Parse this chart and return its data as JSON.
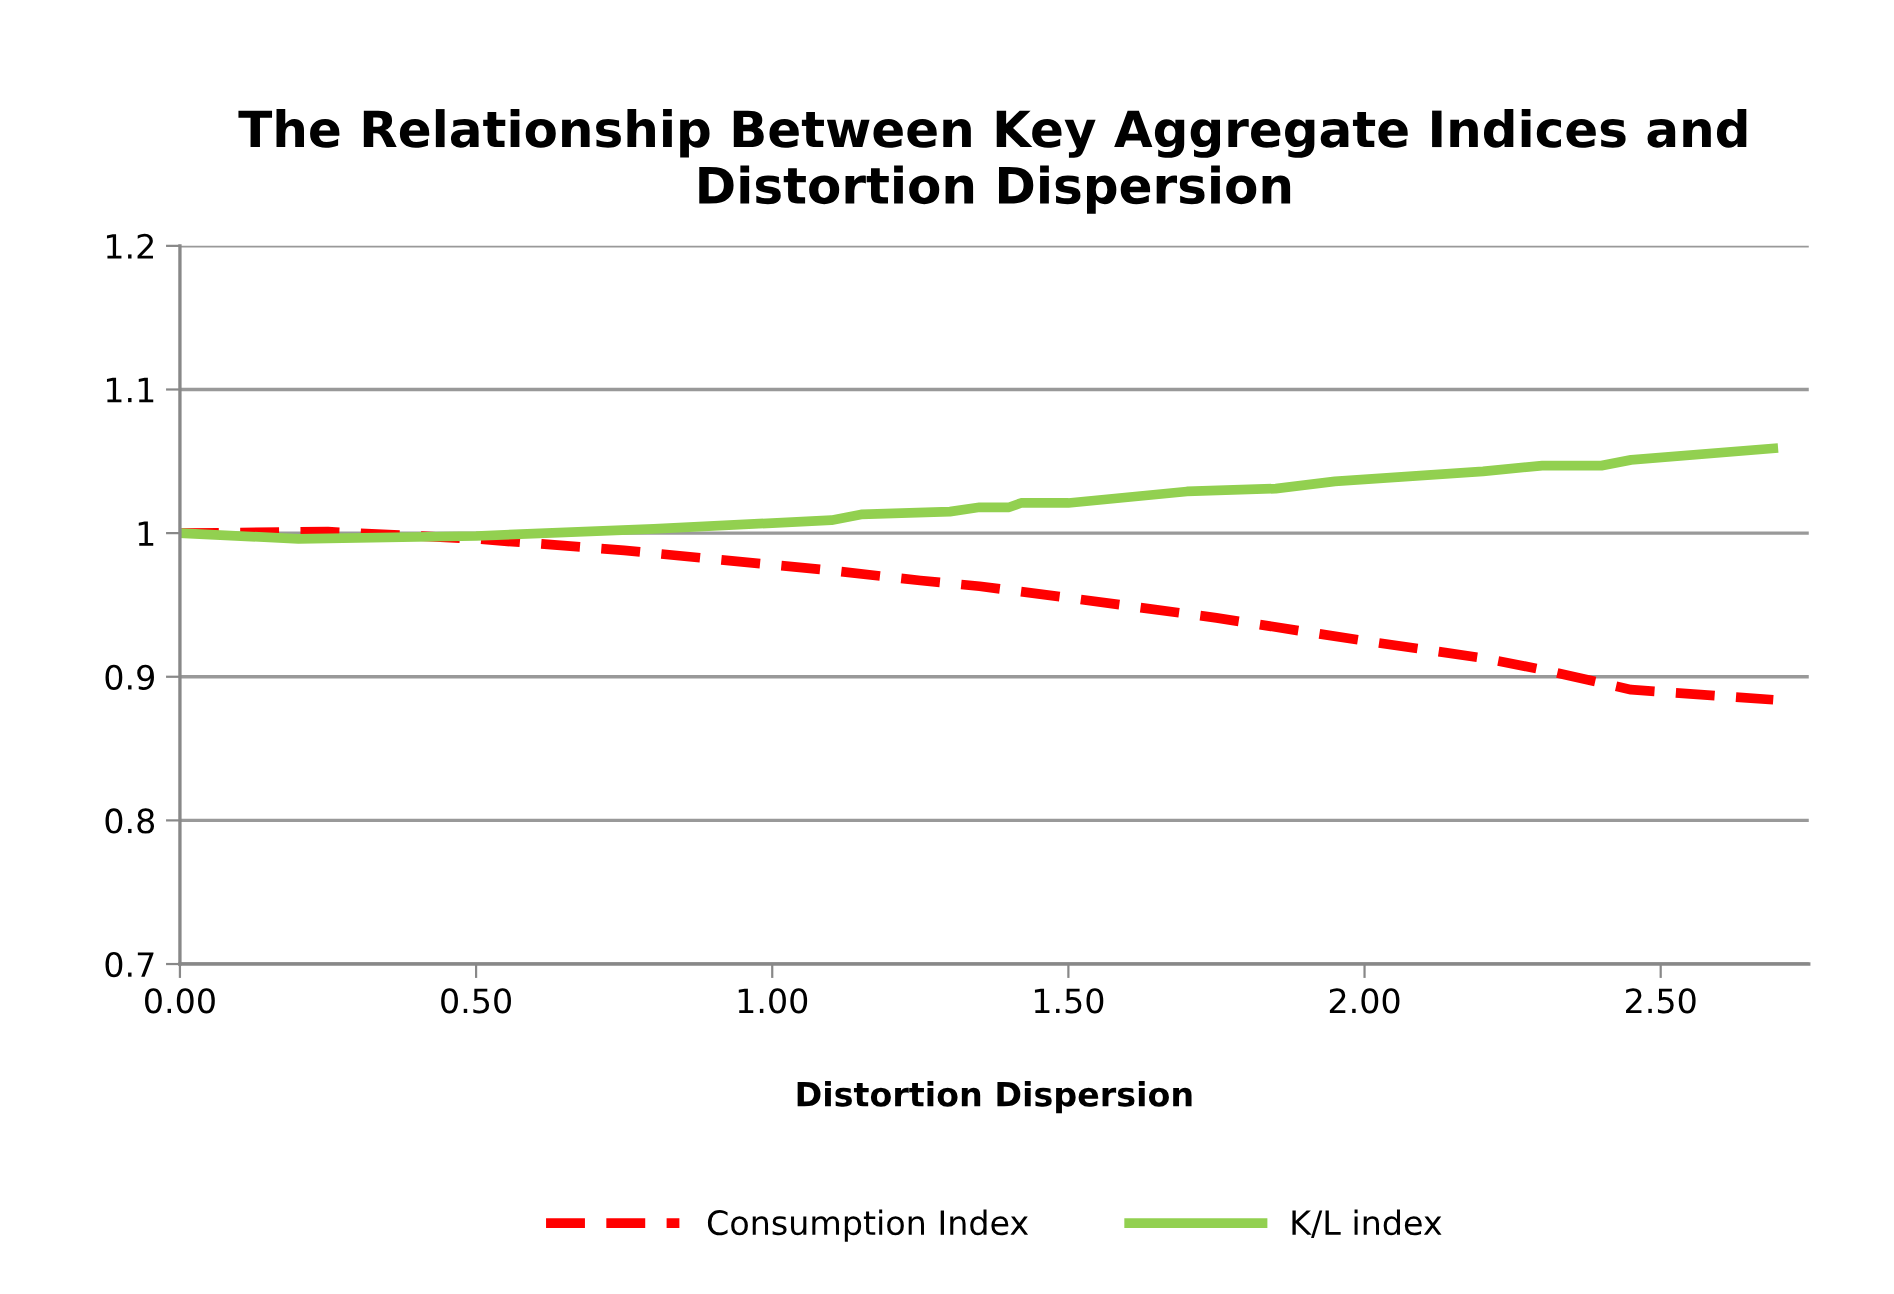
{
  "chart_data": {
    "type": "line",
    "title": "The Relationship Between Key Aggregate Indices and Distortion Dispersion",
    "xlabel": "Distortion Dispersion",
    "xlim": [
      0,
      2.75
    ],
    "xticks": [
      {
        "value": 0,
        "label": "0.00"
      },
      {
        "value": 0.5,
        "label": "0.50"
      },
      {
        "value": 1.0,
        "label": "1.00"
      },
      {
        "value": 1.5,
        "label": "1.50"
      },
      {
        "value": 2.0,
        "label": "2.00"
      },
      {
        "value": 2.5,
        "label": "2.50"
      }
    ],
    "ylim": [
      0.7,
      1.2
    ],
    "yticks": [
      0.7,
      0.8,
      0.9,
      1,
      1.1,
      1.2
    ],
    "grid": "y",
    "legend": "bottom",
    "marker": "none",
    "series": [
      {
        "name": "Consumption Index",
        "color": "#ff0000",
        "line_style": "dashed",
        "x": [
          0,
          0.25,
          0.5,
          0.75,
          1.0,
          1.1,
          1.25,
          1.35,
          1.5,
          1.75,
          2.0,
          2.2,
          2.3,
          2.45,
          2.69
        ],
        "values": [
          1.0,
          1.001,
          0.996,
          0.988,
          0.978,
          0.974,
          0.967,
          0.963,
          0.955,
          0.941,
          0.925,
          0.913,
          0.905,
          0.891,
          0.884
        ]
      },
      {
        "name": "K/L index",
        "color": "#92d050",
        "line_style": "solid",
        "x": [
          0,
          0.2,
          0.5,
          0.8,
          1.0,
          1.1,
          1.15,
          1.3,
          1.35,
          1.4,
          1.42,
          1.5,
          1.7,
          1.85,
          1.95,
          2.2,
          2.3,
          2.4,
          2.45,
          2.69
        ],
        "values": [
          1.0,
          0.996,
          0.998,
          1.003,
          1.007,
          1.009,
          1.013,
          1.015,
          1.018,
          1.018,
          1.021,
          1.021,
          1.029,
          1.031,
          1.036,
          1.043,
          1.047,
          1.047,
          1.051,
          1.059
        ]
      }
    ]
  }
}
